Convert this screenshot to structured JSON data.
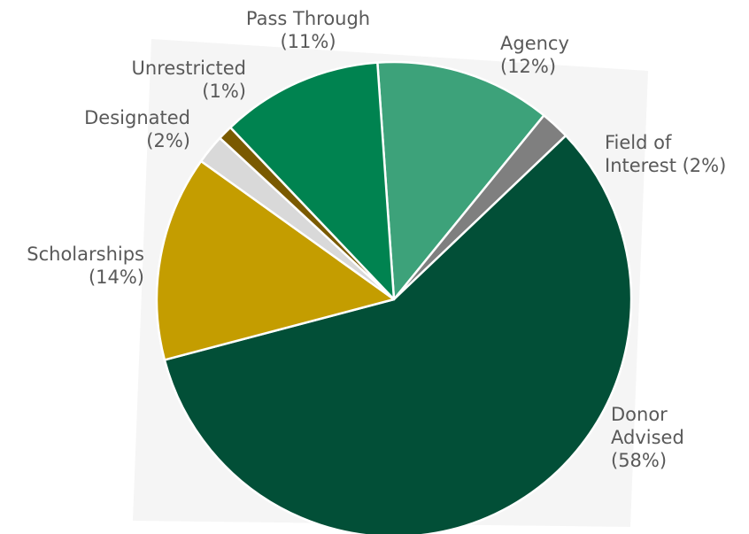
{
  "chart_data": {
    "type": "pie",
    "title": "",
    "start_angle_deg": -4,
    "direction": "clockwise",
    "slices": [
      {
        "label": "Agency",
        "label_lines": [
          "Agency",
          "(12%)"
        ],
        "percent_text": "(12%)",
        "value": 12,
        "color": "#3da27a"
      },
      {
        "label": "Field of Interest",
        "label_lines": [
          "Field of",
          "Interest (2%)"
        ],
        "percent_text": "(2%)",
        "value": 2,
        "color": "#7f7f7f"
      },
      {
        "label": "Donor Advised",
        "label_lines": [
          "Donor",
          "Advised",
          "(58%)"
        ],
        "percent_text": "(58%)",
        "value": 58,
        "color": "#024f37"
      },
      {
        "label": "Scholarships",
        "label_lines": [
          "Scholarships",
          "(14%)"
        ],
        "percent_text": "(14%)",
        "value": 14,
        "color": "#c49d00"
      },
      {
        "label": "Designated",
        "label_lines": [
          "Designated",
          "(2%)"
        ],
        "percent_text": "(2%)",
        "value": 2,
        "color": "#d9d9d9"
      },
      {
        "label": "Unrestricted",
        "label_lines": [
          "Unrestricted",
          "(1%)"
        ],
        "percent_text": "(1%)",
        "value": 1,
        "color": "#7a5a00"
      },
      {
        "label": "Pass Through",
        "label_lines": [
          "Pass Through",
          "(11%)"
        ],
        "percent_text": "(11%)",
        "value": 11,
        "color": "#008350"
      }
    ]
  }
}
